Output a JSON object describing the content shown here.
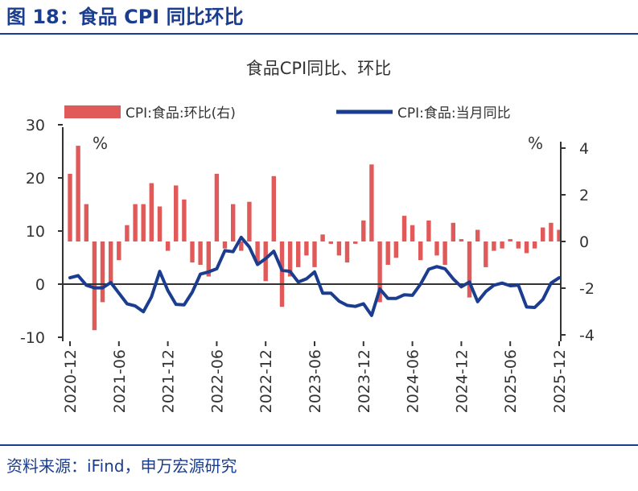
{
  "figure_title": "图 18：食品 CPI 同比环比",
  "source_text": "资料来源：iFind，申万宏源研究",
  "colors": {
    "brand": "#1b3d8f",
    "bar": "#e05a5a",
    "line": "#1b3d8f",
    "text": "#333333"
  },
  "chart_data": {
    "type": "bar+line",
    "title": "食品CPI同比、环比",
    "left_axis": {
      "label": "%",
      "ylim": [
        -10,
        30
      ],
      "ticks": [
        "30",
        "20",
        "10",
        "0",
        "-10"
      ]
    },
    "right_axis": {
      "label": "%",
      "ylim": [
        -4,
        5
      ],
      "ticks": [
        "4",
        "2",
        "0",
        "-2",
        "-4"
      ]
    },
    "x_tick_labels": [
      "2020-12",
      "2021-06",
      "2021-12",
      "2022-06",
      "2022-12",
      "2023-06",
      "2023-12",
      "2024-06",
      "2024-12",
      "2025-06",
      "2025-12"
    ],
    "months": [
      "2020-12",
      "2021-01",
      "2021-02",
      "2021-03",
      "2021-04",
      "2021-05",
      "2021-06",
      "2021-07",
      "2021-08",
      "2021-09",
      "2021-10",
      "2021-11",
      "2021-12",
      "2022-01",
      "2022-02",
      "2022-03",
      "2022-04",
      "2022-05",
      "2022-06",
      "2022-07",
      "2022-08",
      "2022-09",
      "2022-10",
      "2022-11",
      "2022-12",
      "2023-01",
      "2023-02",
      "2023-03",
      "2023-04",
      "2023-05",
      "2023-06",
      "2023-07",
      "2023-08",
      "2023-09",
      "2023-10",
      "2023-11",
      "2023-12",
      "2024-01",
      "2024-02",
      "2024-03",
      "2024-04",
      "2024-05",
      "2024-06",
      "2024-07",
      "2024-08",
      "2024-09",
      "2024-10",
      "2024-11",
      "2024-12",
      "2025-01",
      "2025-02",
      "2025-03",
      "2025-04",
      "2025-05",
      "2025-06",
      "2025-07",
      "2025-08",
      "2025-09",
      "2025-10",
      "2025-11",
      "2025-12"
    ],
    "series": [
      {
        "name": "CPI:食品:环比(右)",
        "type": "bar",
        "axis": "right",
        "values": [
          2.9,
          4.1,
          1.6,
          -3.8,
          -2.6,
          -1.8,
          -0.8,
          0.7,
          1.6,
          1.6,
          2.5,
          1.5,
          -0.4,
          2.4,
          1.8,
          -0.9,
          -1.0,
          -1.5,
          2.9,
          -0.3,
          1.6,
          -0.4,
          1.7,
          -0.9,
          -1.7,
          2.8,
          -2.8,
          -1.5,
          -1.1,
          -0.6,
          -1.1,
          0.3,
          -0.1,
          -0.6,
          -0.9,
          -0.1,
          0.9,
          3.3,
          -2.6,
          -1.0,
          -0.7,
          1.1,
          0.7,
          -0.8,
          0.9,
          -0.6,
          -1.0,
          0.8,
          0.1,
          -2.4,
          0.5,
          -1.1,
          -0.4,
          -0.3,
          0.1,
          -0.3,
          -0.5,
          -0.3,
          0.6,
          0.8,
          0.5
        ]
      },
      {
        "name": "CPI:食品:当月同比",
        "type": "line",
        "axis": "left",
        "values": [
          1.2,
          1.6,
          -0.2,
          -0.7,
          -0.7,
          0.3,
          -1.7,
          -3.7,
          -4.1,
          -5.2,
          -2.4,
          2.4,
          -1.2,
          -3.8,
          -3.9,
          -1.5,
          1.9,
          2.3,
          2.9,
          6.3,
          6.1,
          8.8,
          7.0,
          3.7,
          4.8,
          6.2,
          2.6,
          2.4,
          0.4,
          1.0,
          2.3,
          -1.7,
          -1.7,
          -3.2,
          -4.0,
          -4.2,
          -3.7,
          -5.9,
          -0.9,
          -2.7,
          -2.7,
          -2.0,
          -2.1,
          0.0,
          2.8,
          3.3,
          2.9,
          1.0,
          -0.5,
          0.4,
          -3.3,
          -1.4,
          -0.2,
          0.2,
          -0.3,
          -0.2,
          -4.3,
          -4.4,
          -2.9,
          0.2,
          1.2
        ]
      }
    ]
  }
}
